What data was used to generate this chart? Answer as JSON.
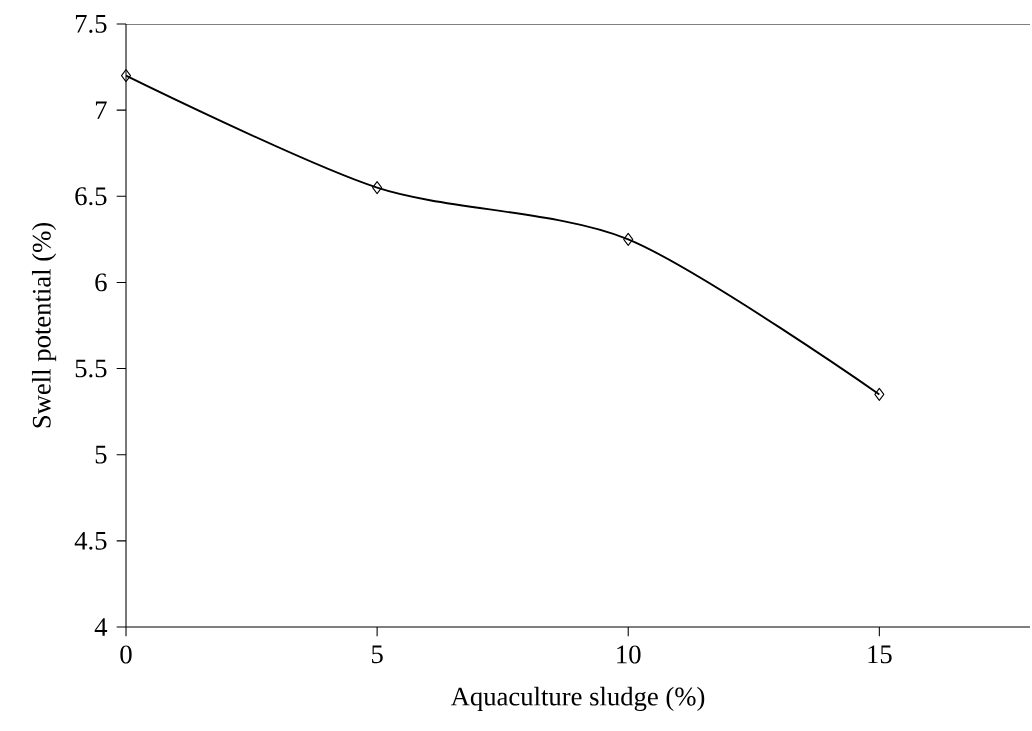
{
  "chart_data": {
    "type": "line",
    "xlabel": "Aquaculture sludge (%)",
    "ylabel": "Swell potential (%)",
    "x": [
      0,
      5,
      10,
      15
    ],
    "series": [
      {
        "color": "#000000",
        "values": [
          7.2,
          6.55,
          6.25,
          5.35
        ]
      }
    ],
    "xlim": [
      0,
      18
    ],
    "xticks": [
      0,
      5,
      10,
      15
    ],
    "ylim": [
      4,
      7.5
    ],
    "yticks": [
      4,
      4.5,
      5,
      5.5,
      6,
      6.5,
      7,
      7.5
    ],
    "marker": "diamond",
    "line_style": "solid"
  }
}
